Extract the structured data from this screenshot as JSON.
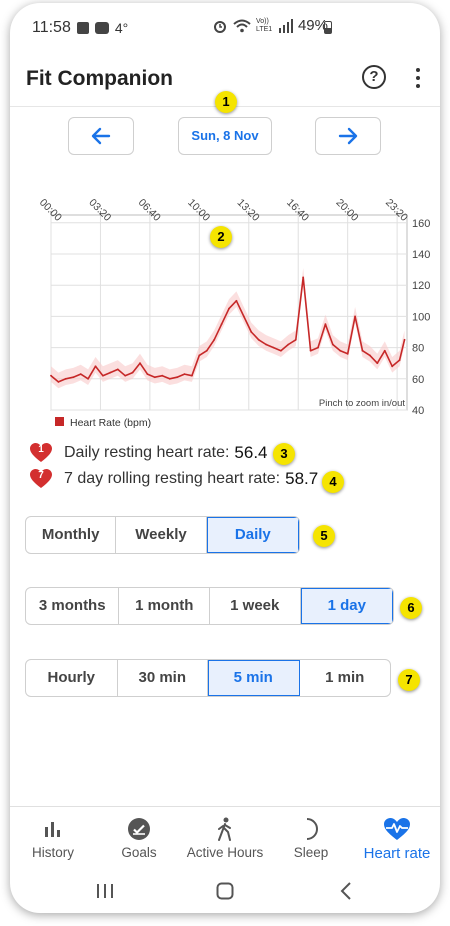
{
  "status": {
    "time": "11:58",
    "temp": "4°",
    "network": "Vo)) LTE1",
    "battery": "49%"
  },
  "app": {
    "title": "Fit Companion"
  },
  "date_nav": {
    "date_label": "Sun, 8 Nov"
  },
  "markers": [
    "1",
    "2",
    "3",
    "4",
    "5",
    "6",
    "7"
  ],
  "chart_data": {
    "type": "line",
    "title": "",
    "xlabel": "",
    "ylabel": "",
    "x_ticks": [
      "00:00",
      "03:20",
      "06:40",
      "10:00",
      "13:20",
      "16:40",
      "20:00",
      "23:20"
    ],
    "y_ticks": [
      40,
      60,
      80,
      100,
      120,
      140,
      160
    ],
    "ylim": [
      40,
      165
    ],
    "grid": true,
    "legend": "bottom-left",
    "note": "Pinch to zoom in/out",
    "series": [
      {
        "name": "Heart Rate (bpm)",
        "color": "#c62828",
        "x": [
          "00:00",
          "00:30",
          "01:00",
          "01:30",
          "02:00",
          "02:30",
          "03:00",
          "03:30",
          "04:00",
          "04:30",
          "05:00",
          "05:30",
          "06:00",
          "06:30",
          "07:00",
          "07:30",
          "08:00",
          "08:30",
          "09:00",
          "09:30",
          "10:00",
          "10:30",
          "11:00",
          "11:30",
          "12:00",
          "12:30",
          "13:00",
          "13:30",
          "14:00",
          "14:30",
          "15:00",
          "15:30",
          "16:00",
          "16:30",
          "17:00",
          "17:30",
          "18:00",
          "18:30",
          "19:00",
          "19:30",
          "20:00",
          "20:30",
          "21:00",
          "21:30",
          "22:00",
          "22:30",
          "23:00",
          "23:30",
          "23:50"
        ],
        "values": [
          62,
          58,
          60,
          61,
          63,
          60,
          68,
          62,
          64,
          66,
          62,
          64,
          70,
          63,
          61,
          62,
          60,
          61,
          63,
          62,
          75,
          78,
          85,
          95,
          105,
          110,
          100,
          90,
          85,
          82,
          80,
          78,
          82,
          85,
          125,
          78,
          80,
          95,
          82,
          78,
          76,
          100,
          78,
          75,
          70,
          78,
          68,
          72,
          85
        ]
      }
    ]
  },
  "stats": {
    "daily_badge": "1",
    "daily_label": "Daily resting heart rate:",
    "daily_value": "56.4",
    "rolling_badge": "7",
    "rolling_label": "7 day rolling resting heart rate:",
    "rolling_value": "58.7"
  },
  "period_tabs": [
    "Monthly",
    "Weekly",
    "Daily"
  ],
  "period_active": "Daily",
  "range_tabs": [
    "3 months",
    "1 month",
    "1 week",
    "1 day"
  ],
  "range_active": "1 day",
  "interval_tabs": [
    "Hourly",
    "30 min",
    "5 min",
    "1 min"
  ],
  "interval_active": "5 min",
  "bottom_nav": [
    {
      "label": "History",
      "icon": "bar-chart-icon"
    },
    {
      "label": "Goals",
      "icon": "goal-check-icon"
    },
    {
      "label": "Active Hours",
      "icon": "walking-icon"
    },
    {
      "label": "Sleep",
      "icon": "moon-icon"
    },
    {
      "label": "Heart rate",
      "icon": "heart-pulse-icon"
    }
  ],
  "colors": {
    "accent": "#1a73e8",
    "heart": "#c62828",
    "marker": "#f5e400"
  }
}
